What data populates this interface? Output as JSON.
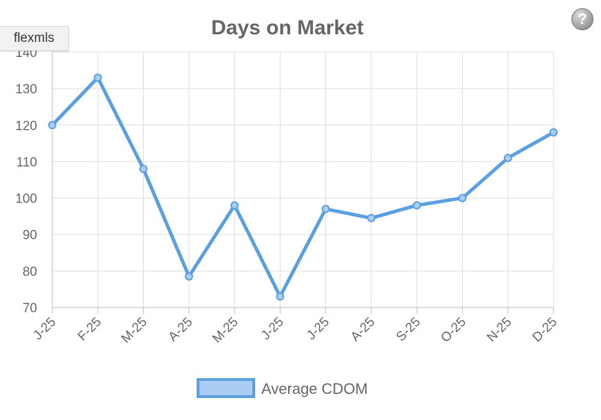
{
  "brand_badge": "flexmls",
  "help": {
    "icon": "question-mark-icon",
    "glyph": "?"
  },
  "colors": {
    "line": "#5aa0e0",
    "point_fill": "#a9cdf3",
    "grid": "#dddddd",
    "text": "#666666"
  },
  "chart_data": {
    "type": "line",
    "title": "Days on Market",
    "xlabel": "",
    "ylabel": "",
    "categories": [
      "J-25",
      "F-25",
      "M-25",
      "A-25",
      "M-25",
      "J-25",
      "J-25",
      "A-25",
      "S-25",
      "O-25",
      "N-25",
      "D-25"
    ],
    "series": [
      {
        "name": "Average CDOM",
        "values": [
          120,
          133,
          108,
          78.5,
          98,
          73,
          97,
          94.5,
          98,
          100,
          111,
          118
        ]
      }
    ],
    "ylim": [
      70,
      140
    ],
    "yticks": [
      70,
      80,
      90,
      100,
      110,
      120,
      130,
      140
    ],
    "grid": true,
    "legend": "bottom"
  }
}
